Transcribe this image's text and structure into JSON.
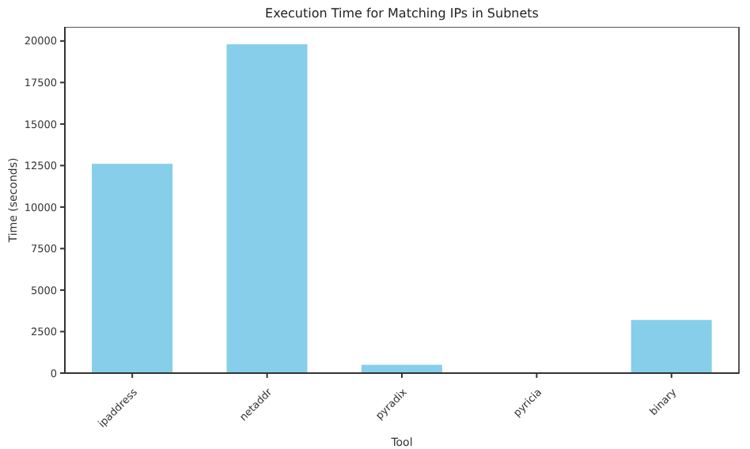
{
  "chart_data": {
    "type": "bar",
    "title": "Execution Time for Matching IPs in Subnets",
    "xlabel": "Tool",
    "ylabel": "Time (seconds)",
    "categories": [
      "ipaddress",
      "netaddr",
      "pyradix",
      "pyricia",
      "binary"
    ],
    "values": [
      12600,
      19800,
      500,
      0,
      3200
    ],
    "color": "#87ceeb",
    "ylim": [
      0,
      20850
    ],
    "yticks": [
      0,
      2500,
      5000,
      7500,
      10000,
      12500,
      15000,
      17500,
      20000
    ],
    "grid": false
  }
}
